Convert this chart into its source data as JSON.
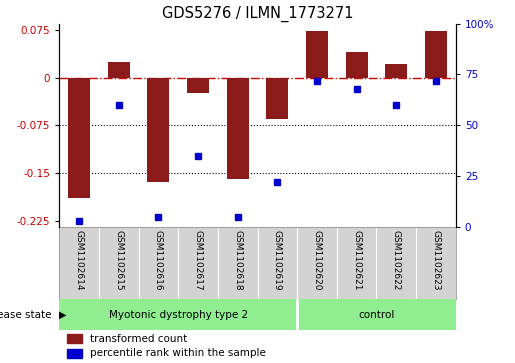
{
  "title": "GDS5276 / ILMN_1773271",
  "samples": [
    "GSM1102614",
    "GSM1102615",
    "GSM1102616",
    "GSM1102617",
    "GSM1102618",
    "GSM1102619",
    "GSM1102620",
    "GSM1102621",
    "GSM1102622",
    "GSM1102623"
  ],
  "red_values": [
    -0.19,
    0.025,
    -0.165,
    -0.025,
    -0.16,
    -0.065,
    0.073,
    0.04,
    0.022,
    0.073
  ],
  "blue_values_pct": [
    3,
    60,
    5,
    35,
    5,
    22,
    72,
    68,
    60,
    72
  ],
  "ylim_left": [
    -0.235,
    0.085
  ],
  "ylim_right": [
    0,
    100
  ],
  "left_ticks": [
    0.075,
    0.0,
    -0.075,
    -0.15,
    -0.225
  ],
  "right_ticks": [
    100,
    75,
    50,
    25,
    0
  ],
  "dotted_lines": [
    -0.075,
    -0.15
  ],
  "n_disease": 6,
  "n_control": 4,
  "disease_groups": [
    {
      "label": "Myotonic dystrophy type 2"
    },
    {
      "label": "control"
    }
  ],
  "bar_color": "#8B1A1A",
  "dot_color": "#0000CD",
  "bar_width": 0.55,
  "legend_items": [
    {
      "color": "#8B1A1A",
      "label": "transformed count"
    },
    {
      "color": "#0000CD",
      "label": "percentile rank within the sample"
    }
  ],
  "disease_state_label": "disease state",
  "sample_bg": "#D3D3D3",
  "disease_bg": "#90EE90",
  "bg_color": "#FFFFFF"
}
